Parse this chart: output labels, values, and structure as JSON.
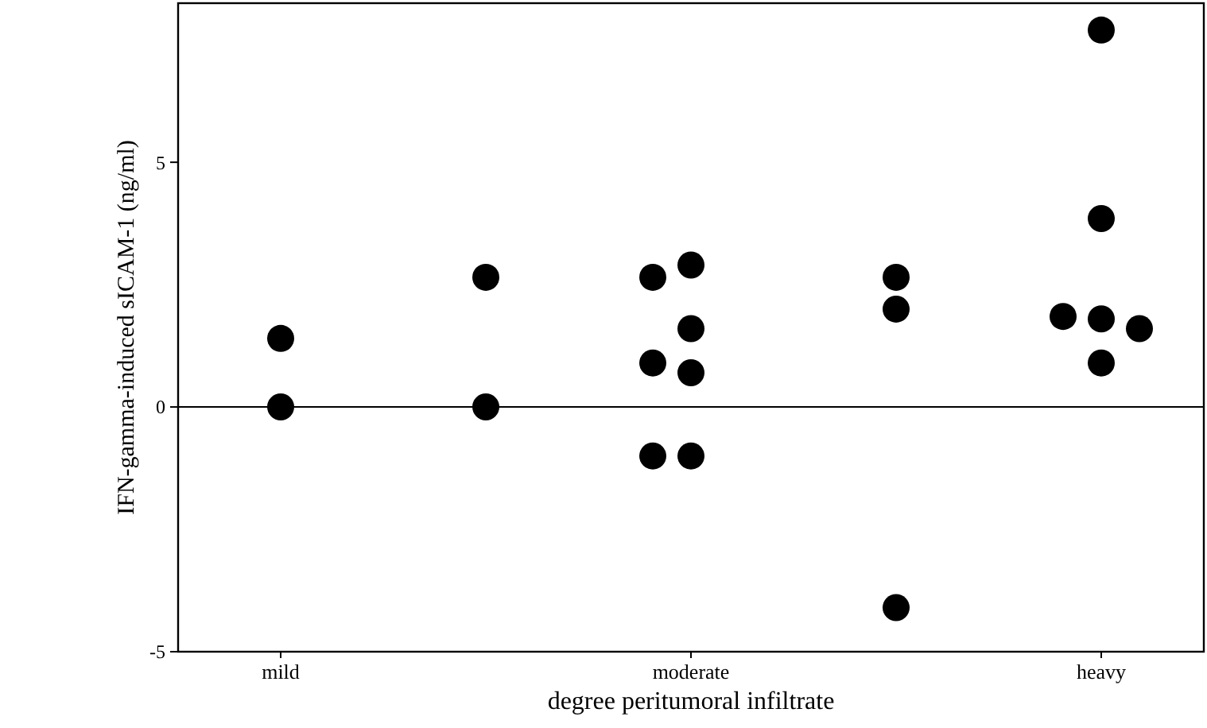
{
  "chart_data": {
    "type": "scatter",
    "xlabel": "degree peritumoral infiltrate",
    "ylabel": "IFN-gamma-induced sICAM-1 (ng/ml)",
    "categories": [
      "mild",
      null,
      "moderate",
      null,
      "heavy"
    ],
    "series": [
      {
        "color": "#000000",
        "values": [
          1.4,
          2.65,
          0.7,
          2.65,
          1.8
        ]
      },
      {
        "color": "#000000",
        "values": [
          0,
          0,
          -1,
          2,
          7.7
        ]
      },
      {
        "color": "#000000",
        "values": [
          null,
          null,
          2.9,
          -4.1,
          3.85
        ]
      },
      {
        "color": "#000000",
        "values": [
          null,
          null,
          2.65,
          null,
          1.85
        ]
      },
      {
        "color": "#000000",
        "values": [
          null,
          null,
          1.6,
          null,
          1.6
        ]
      },
      {
        "color": "#000000",
        "values": [
          null,
          null,
          0.9,
          null,
          0.9
        ]
      },
      {
        "color": "#000000",
        "values": [
          null,
          null,
          -1,
          null,
          null
        ]
      }
    ],
    "marker": "circle",
    "ylim": [
      -5,
      8.25
    ],
    "yticks": [
      -5,
      0,
      5
    ],
    "ref_lines": [
      {
        "axis": "y",
        "value": 0,
        "color": "#000000"
      }
    ]
  }
}
